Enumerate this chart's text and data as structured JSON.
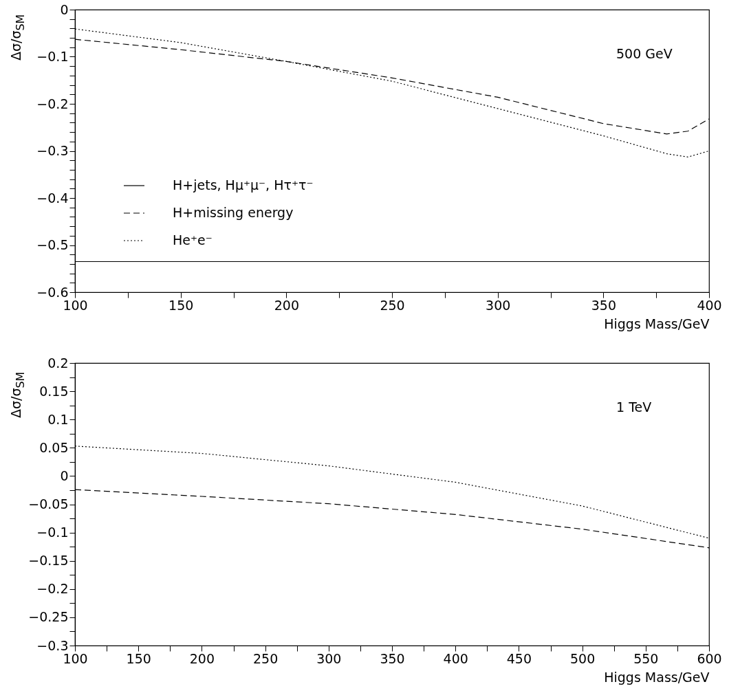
{
  "chart_data": [
    {
      "type": "line",
      "xlabel": "Higgs Mass/GeV",
      "ylabel": "Δσ/σ$_{SM}$",
      "annotations": [
        "500 GeV"
      ],
      "legend": "left",
      "grid": false,
      "xlim": [
        100,
        400
      ],
      "xticks": [
        100,
        {
          "value": 125,
          "label": null
        },
        150,
        {
          "value": 175,
          "label": null
        },
        200,
        {
          "value": 225,
          "label": null
        },
        250,
        {
          "value": 275,
          "label": null
        },
        300,
        {
          "value": 325,
          "label": null
        },
        350,
        {
          "value": 375,
          "label": null
        },
        400
      ],
      "ylim": [
        -0.6,
        0
      ],
      "yticks": [
        -0.6,
        {
          "value": -0.58,
          "label": null
        },
        {
          "value": -0.56,
          "label": null
        },
        {
          "value": -0.54,
          "label": null
        },
        {
          "value": -0.52,
          "label": null
        },
        -0.5,
        {
          "value": -0.48,
          "label": null
        },
        {
          "value": -0.46,
          "label": null
        },
        {
          "value": -0.44,
          "label": null
        },
        {
          "value": -0.42,
          "label": null
        },
        -0.4,
        {
          "value": -0.38,
          "label": null
        },
        {
          "value": -0.36,
          "label": null
        },
        {
          "value": -0.34,
          "label": null
        },
        {
          "value": -0.32,
          "label": null
        },
        -0.3,
        {
          "value": -0.28,
          "label": null
        },
        {
          "value": -0.26,
          "label": null
        },
        {
          "value": -0.24,
          "label": null
        },
        {
          "value": -0.22,
          "label": null
        },
        -0.2,
        {
          "value": -0.18,
          "label": null
        },
        {
          "value": -0.16,
          "label": null
        },
        {
          "value": -0.14,
          "label": null
        },
        {
          "value": -0.12,
          "label": null
        },
        -0.1,
        {
          "value": -0.08,
          "label": null
        },
        {
          "value": -0.06,
          "label": null
        },
        {
          "value": -0.04,
          "label": null
        },
        {
          "value": -0.02,
          "label": null
        },
        0
      ],
      "series": [
        {
          "name": "H+jets, Hμ⁺μ⁻, Hτ⁺τ⁻",
          "color": "#000000",
          "line_style": "solid",
          "x": [
            100,
            400
          ],
          "values": [
            -0.535,
            -0.535
          ]
        },
        {
          "name": "H+missing energy",
          "color": "#000000",
          "line_style": "dashed",
          "x": [
            100,
            150,
            200,
            250,
            300,
            350,
            380,
            390,
            400
          ],
          "values": [
            -0.063,
            -0.085,
            -0.11,
            -0.145,
            -0.186,
            -0.242,
            -0.264,
            -0.258,
            -0.232
          ]
        },
        {
          "name": "He⁺e⁻",
          "color": "#000000",
          "line_style": "dotted",
          "x": [
            100,
            150,
            200,
            250,
            300,
            350,
            380,
            390,
            400
          ],
          "values": [
            -0.041,
            -0.07,
            -0.11,
            -0.152,
            -0.21,
            -0.268,
            -0.306,
            -0.313,
            -0.3
          ]
        }
      ]
    },
    {
      "type": "line",
      "xlabel": "Higgs Mass/GeV",
      "ylabel": "Δσ/σ$_{SM}$",
      "annotations": [
        "1 TeV"
      ],
      "legend": "left",
      "grid": false,
      "xlim": [
        100,
        600
      ],
      "xticks": [
        100,
        {
          "value": 125,
          "label": null
        },
        150,
        {
          "value": 175,
          "label": null
        },
        200,
        {
          "value": 225,
          "label": null
        },
        250,
        {
          "value": 275,
          "label": null
        },
        300,
        {
          "value": 325,
          "label": null
        },
        350,
        {
          "value": 375,
          "label": null
        },
        400,
        {
          "value": 425,
          "label": null
        },
        450,
        {
          "value": 475,
          "label": null
        },
        500,
        {
          "value": 525,
          "label": null
        },
        550,
        {
          "value": 575,
          "label": null
        },
        600
      ],
      "ylim": [
        -0.3,
        0.2
      ],
      "yticks": [
        -0.3,
        {
          "value": -0.275,
          "label": null
        },
        -0.25,
        {
          "value": -0.225,
          "label": null
        },
        -0.2,
        {
          "value": -0.175,
          "label": null
        },
        -0.15,
        {
          "value": -0.125,
          "label": null
        },
        -0.1,
        {
          "value": -0.075,
          "label": null
        },
        -0.05,
        {
          "value": -0.025,
          "label": null
        },
        0,
        {
          "value": 0.025,
          "label": null
        },
        0.05,
        {
          "value": 0.075,
          "label": null
        },
        0.1,
        {
          "value": 0.125,
          "label": null
        },
        0.15,
        {
          "value": 0.175,
          "label": null
        },
        0.2
      ],
      "series": [
        {
          "name": "H+missing energy",
          "color": "#000000",
          "line_style": "dashed",
          "x": [
            100,
            200,
            300,
            400,
            500,
            600
          ],
          "values": [
            -0.024,
            -0.036,
            -0.049,
            -0.068,
            -0.094,
            -0.127
          ]
        },
        {
          "name": "He⁺e⁻",
          "color": "#000000",
          "line_style": "dotted",
          "x": [
            100,
            200,
            300,
            400,
            500,
            600
          ],
          "values": [
            0.053,
            0.04,
            0.018,
            -0.011,
            -0.053,
            -0.11
          ]
        }
      ]
    }
  ]
}
